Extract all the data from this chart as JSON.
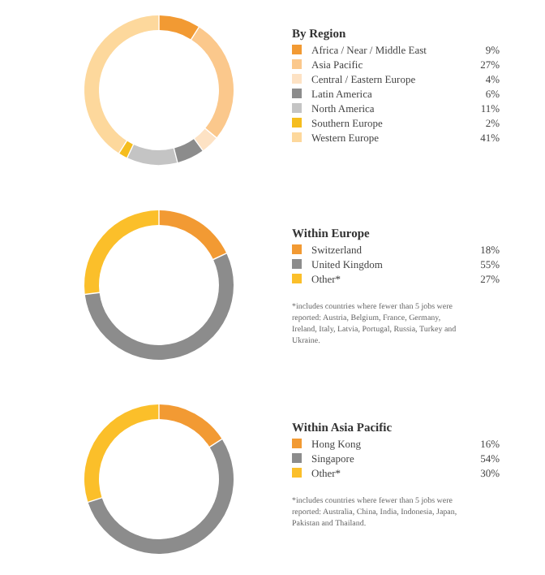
{
  "chart_data": [
    {
      "type": "donut",
      "legend_title": "By Region",
      "categories": [
        "Africa / Near / Middle East",
        "Asia Pacific",
        "Central / Eastern Europe",
        "Latin America",
        "North America",
        "Southern Europe",
        "Western Europe"
      ],
      "values": [
        9,
        27,
        4,
        6,
        11,
        2,
        41
      ],
      "value_labels": [
        "9%",
        "27%",
        "4%",
        "6%",
        "11%",
        "2%",
        "41%"
      ],
      "colors": [
        "#f29a33",
        "#fbc88c",
        "#fde2c4",
        "#8c8c8c",
        "#c4c4c4",
        "#f5bd1e",
        "#fdd89c"
      ],
      "legend": "right"
    },
    {
      "type": "donut",
      "legend_title": "Within Europe",
      "categories": [
        "Switzerland",
        "United Kingdom",
        "Other*"
      ],
      "values": [
        18,
        55,
        27
      ],
      "value_labels": [
        "18%",
        "55%",
        "27%"
      ],
      "colors": [
        "#f29a33",
        "#8c8c8c",
        "#fbbf2a"
      ],
      "legend": "right",
      "annotations": [
        "*includes countries where fewer than 5 jobs were reported: Austria, Belgium, France, Germany, Ireland, Italy, Latvia, Portugal, Russia, Turkey and Ukraine."
      ]
    },
    {
      "type": "donut",
      "legend_title": "Within Asia Pacific",
      "categories": [
        "Hong Kong",
        "Singapore",
        "Other*"
      ],
      "values": [
        16,
        54,
        30
      ],
      "value_labels": [
        "16%",
        "54%",
        "30%"
      ],
      "colors": [
        "#f29a33",
        "#8c8c8c",
        "#fbbf2a"
      ],
      "legend": "right",
      "annotations": [
        "*includes countries where fewer than 5 jobs were reported: Australia, China, India, Indonesia, Japan, Pakistan and Thailand."
      ]
    }
  ]
}
